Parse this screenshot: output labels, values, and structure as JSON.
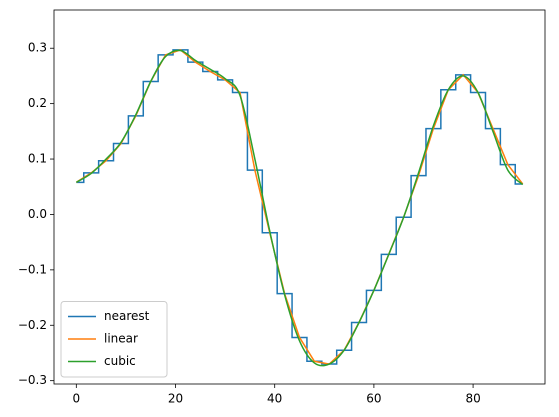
{
  "chart_data": {
    "type": "line",
    "series": [
      {
        "name": "nearest",
        "color": "#1f77b4",
        "drawstyle": "steps-mid",
        "x": [
          0,
          3,
          6,
          9,
          12,
          15,
          18,
          21,
          24,
          27,
          30,
          33,
          36,
          39,
          42,
          45,
          48,
          51,
          54,
          57,
          60,
          63,
          66,
          69,
          72,
          75,
          78,
          81,
          84,
          87,
          90
        ],
        "values": [
          0.058,
          0.075,
          0.097,
          0.128,
          0.178,
          0.24,
          0.288,
          0.297,
          0.275,
          0.258,
          0.243,
          0.22,
          0.08,
          -0.033,
          -0.143,
          -0.222,
          -0.265,
          -0.27,
          -0.245,
          -0.195,
          -0.137,
          -0.072,
          -0.005,
          0.07,
          0.155,
          0.225,
          0.252,
          0.22,
          0.155,
          0.09,
          0.055
        ]
      },
      {
        "name": "linear",
        "color": "#ff7f0e",
        "drawstyle": "default",
        "x": [
          0,
          3,
          6,
          9,
          12,
          15,
          18,
          21,
          24,
          27,
          30,
          33,
          36,
          39,
          42,
          45,
          48,
          51,
          54,
          57,
          60,
          63,
          66,
          69,
          72,
          75,
          78,
          81,
          84,
          87,
          90
        ],
        "values": [
          0.058,
          0.075,
          0.097,
          0.128,
          0.178,
          0.24,
          0.288,
          0.297,
          0.275,
          0.258,
          0.243,
          0.22,
          0.08,
          -0.033,
          -0.143,
          -0.222,
          -0.265,
          -0.27,
          -0.245,
          -0.195,
          -0.137,
          -0.072,
          -0.005,
          0.07,
          0.155,
          0.225,
          0.252,
          0.22,
          0.155,
          0.09,
          0.055
        ]
      },
      {
        "name": "cubic",
        "color": "#2ca02c",
        "drawstyle": "smooth",
        "x": [
          0,
          3,
          6,
          9,
          12,
          15,
          18,
          21,
          24,
          27,
          30,
          33,
          36,
          39,
          42,
          45,
          48,
          51,
          54,
          57,
          60,
          63,
          66,
          69,
          72,
          75,
          78,
          81,
          84,
          87,
          90
        ],
        "values": [
          0.058,
          0.074,
          0.1,
          0.13,
          0.18,
          0.24,
          0.285,
          0.296,
          0.278,
          0.262,
          0.245,
          0.215,
          0.1,
          -0.03,
          -0.145,
          -0.228,
          -0.268,
          -0.27,
          -0.245,
          -0.195,
          -0.137,
          -0.072,
          -0.005,
          0.075,
          0.16,
          0.225,
          0.25,
          0.22,
          0.15,
          0.08,
          0.054
        ]
      }
    ],
    "xlim": [
      -4.5,
      94.5
    ],
    "xticks": [
      0,
      20,
      40,
      60,
      80
    ],
    "ylim": [
      -0.306,
      0.369
    ],
    "yticks": [
      {
        "value": -0.3,
        "label": "−0.3"
      },
      {
        "value": -0.2,
        "label": "−0.2"
      },
      {
        "value": -0.1,
        "label": "−0.1"
      },
      {
        "value": 0,
        "label": "0.0"
      },
      0.1,
      0.2,
      0.3
    ],
    "legend": "lower left",
    "grid": false
  }
}
